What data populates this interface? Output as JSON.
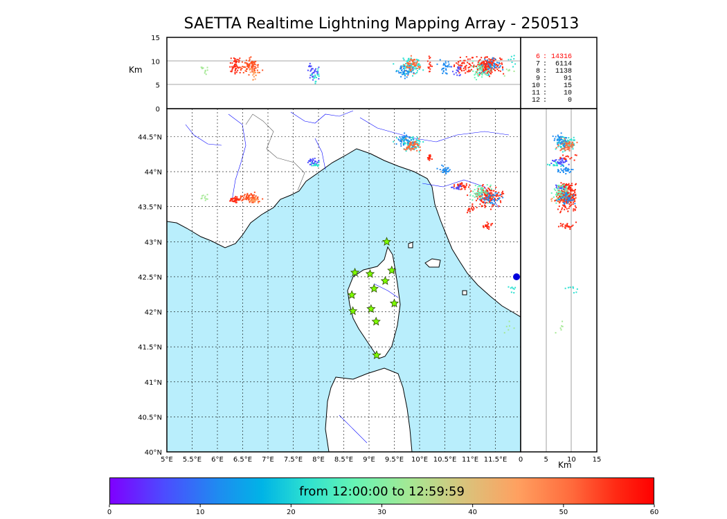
{
  "title": "SAETTA Realtime Lightning Mapping Array - 250513",
  "altitude_unit": "Km",
  "alt_ticks": [
    "0",
    "5",
    "10",
    "15"
  ],
  "lon_ticks": [
    "5°E",
    "5.5°E",
    "6°E",
    "6.5°E",
    "7°E",
    "7.5°E",
    "8°E",
    "8.5°E",
    "9°E",
    "9.5°E",
    "10°E",
    "10.5°E",
    "11°E",
    "11.5°E"
  ],
  "lat_ticks": [
    "40°N",
    "40.5°N",
    "41°N",
    "41.5°N",
    "42°N",
    "42.5°N",
    "43°N",
    "43.5°N",
    "44°N",
    "44.5°N"
  ],
  "counts": [
    {
      "alt": "6",
      "n": "14316",
      "highlight": true
    },
    {
      "alt": "7",
      "n": "6114",
      "highlight": false
    },
    {
      "alt": "8",
      "n": "1138",
      "highlight": false
    },
    {
      "alt": "9",
      "n": "91",
      "highlight": false
    },
    {
      "alt": "10",
      "n": "15",
      "highlight": false
    },
    {
      "alt": "11",
      "n": "10",
      "highlight": false
    },
    {
      "alt": "12",
      "n": "0",
      "highlight": false
    }
  ],
  "colorbar": {
    "label": "from 12:00:00 to 12:59:59",
    "ticks": [
      "0",
      "10",
      "20",
      "30",
      "40",
      "50",
      "60"
    ]
  },
  "colors": {
    "sea": "#b9eefc",
    "land": "#ffffff",
    "station": "#7fff00"
  },
  "stations": [
    {
      "lon": 9.35,
      "lat": 43.0
    },
    {
      "lon": 8.72,
      "lat": 42.56
    },
    {
      "lon": 9.02,
      "lat": 42.54
    },
    {
      "lon": 9.45,
      "lat": 42.59
    },
    {
      "lon": 9.1,
      "lat": 42.33
    },
    {
      "lon": 9.32,
      "lat": 42.44
    },
    {
      "lon": 8.66,
      "lat": 42.24
    },
    {
      "lon": 8.68,
      "lat": 42.01
    },
    {
      "lon": 9.04,
      "lat": 42.04
    },
    {
      "lon": 9.5,
      "lat": 42.12
    },
    {
      "lon": 9.14,
      "lat": 41.86
    },
    {
      "lon": 9.15,
      "lat": 41.38
    }
  ],
  "clusters": [
    {
      "lon": 6.35,
      "lat": 43.6,
      "dlon": 0.1,
      "dlat": 0.04,
      "n": 50,
      "c": "#ff2a14",
      "alt": 9
    },
    {
      "lon": 6.65,
      "lat": 43.62,
      "dlon": 0.18,
      "dlat": 0.06,
      "n": 80,
      "c": "#ff5020",
      "alt": 9
    },
    {
      "lon": 6.72,
      "lat": 43.6,
      "dlon": 0.08,
      "dlat": 0.04,
      "n": 20,
      "c": "#ffa060",
      "alt": 7
    },
    {
      "lon": 5.75,
      "lat": 43.63,
      "dlon": 0.08,
      "dlat": 0.04,
      "n": 10,
      "c": "#a4e894",
      "alt": 8
    },
    {
      "lon": 7.9,
      "lat": 44.14,
      "dlon": 0.12,
      "dlat": 0.05,
      "n": 30,
      "c": "#4c4cff",
      "alt": 8
    },
    {
      "lon": 7.92,
      "lat": 44.1,
      "dlon": 0.1,
      "dlat": 0.03,
      "n": 15,
      "c": "#2ce0d0",
      "alt": 7
    },
    {
      "lon": 9.8,
      "lat": 44.4,
      "dlon": 0.22,
      "dlat": 0.1,
      "n": 90,
      "c": "#2ce0d0",
      "alt": 9
    },
    {
      "lon": 9.85,
      "lat": 44.38,
      "dlon": 0.16,
      "dlat": 0.08,
      "n": 60,
      "c": "#ff6a3c",
      "alt": 9
    },
    {
      "lon": 9.7,
      "lat": 44.45,
      "dlon": 0.15,
      "dlat": 0.08,
      "n": 40,
      "c": "#1e8cf0",
      "alt": 8
    },
    {
      "lon": 10.2,
      "lat": 44.2,
      "dlon": 0.05,
      "dlat": 0.06,
      "n": 15,
      "c": "#ff2a14",
      "alt": 9
    },
    {
      "lon": 10.5,
      "lat": 44.02,
      "dlon": 0.1,
      "dlat": 0.05,
      "n": 30,
      "c": "#1e8cf0",
      "alt": 9
    },
    {
      "lon": 10.82,
      "lat": 43.8,
      "dlon": 0.12,
      "dlat": 0.04,
      "n": 40,
      "c": "#ff2a14",
      "alt": 9
    },
    {
      "lon": 10.75,
      "lat": 43.78,
      "dlon": 0.1,
      "dlat": 0.04,
      "n": 15,
      "c": "#4c4cff",
      "alt": 8
    },
    {
      "lon": 11.35,
      "lat": 43.65,
      "dlon": 0.28,
      "dlat": 0.14,
      "n": 160,
      "c": "#ff2a14",
      "alt": 9
    },
    {
      "lon": 11.25,
      "lat": 43.7,
      "dlon": 0.22,
      "dlat": 0.1,
      "n": 60,
      "c": "#66f4b4",
      "alt": 8
    },
    {
      "lon": 11.4,
      "lat": 43.62,
      "dlon": 0.2,
      "dlat": 0.1,
      "n": 40,
      "c": "#1e8cf0",
      "alt": 9
    },
    {
      "lon": 11.0,
      "lat": 43.45,
      "dlon": 0.08,
      "dlat": 0.05,
      "n": 15,
      "c": "#ff2a14",
      "alt": 9
    },
    {
      "lon": 11.35,
      "lat": 43.22,
      "dlon": 0.1,
      "dlat": 0.05,
      "n": 25,
      "c": "#ff2a14",
      "alt": 9
    },
    {
      "lon": 11.85,
      "lat": 42.3,
      "dlon": 0.08,
      "dlat": 0.06,
      "n": 8,
      "c": "#2ce0d0",
      "alt": 10
    },
    {
      "lon": 11.8,
      "lat": 41.75,
      "dlon": 0.1,
      "dlat": 0.08,
      "n": 6,
      "c": "#a4e894",
      "alt": 8
    }
  ]
}
